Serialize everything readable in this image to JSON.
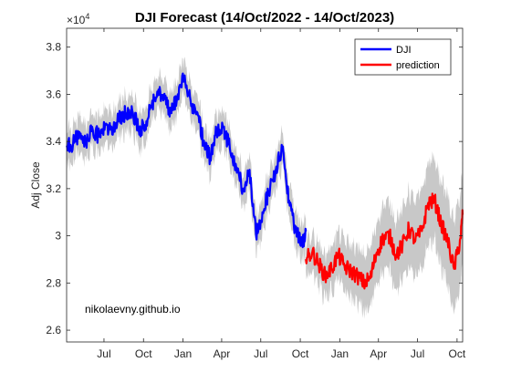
{
  "chart_data": {
    "type": "line",
    "title": "DJI Forecast (14/Oct/2022 - 14/Oct/2023)",
    "xlabel": "",
    "ylabel": "Adj Close",
    "y_exponent_label": "×10",
    "y_exponent_power": "4",
    "ylim": [
      25500,
      38800
    ],
    "y_ticks": [
      26000,
      28000,
      30000,
      32000,
      34000,
      36000,
      38000
    ],
    "y_tick_labels": [
      "2.6",
      "2.8",
      "3",
      "3.2",
      "3.4",
      "3.6",
      "3.8"
    ],
    "x_tick_labels": [
      "Jul",
      "Oct",
      "Jan",
      "Apr",
      "Jul",
      "Oct",
      "Jan",
      "Apr",
      "Jul",
      "Oct"
    ],
    "x_tick_dates": [
      "2021-07-01",
      "2021-10-01",
      "2022-01-01",
      "2022-04-01",
      "2022-07-01",
      "2022-10-01",
      "2023-01-01",
      "2023-04-01",
      "2023-07-01",
      "2023-10-01"
    ],
    "x_range": [
      "2021-04-05",
      "2023-10-14"
    ],
    "grid": false,
    "legend_position": "top-right",
    "annotation": "nikolaevny.github.io",
    "colors": {
      "history": "#0000ff",
      "prediction": "#ff0000",
      "band": "#c8c8c8"
    },
    "series": [
      {
        "name": "DJI",
        "dates": [
          "2021-04-05",
          "2021-04-20",
          "2021-05-05",
          "2021-05-20",
          "2021-06-05",
          "2021-06-20",
          "2021-07-05",
          "2021-07-20",
          "2021-08-05",
          "2021-08-20",
          "2021-09-05",
          "2021-09-20",
          "2021-10-05",
          "2021-10-20",
          "2021-11-05",
          "2021-11-20",
          "2021-12-05",
          "2021-12-20",
          "2022-01-05",
          "2022-01-20",
          "2022-02-05",
          "2022-02-20",
          "2022-03-05",
          "2022-03-20",
          "2022-04-05",
          "2022-04-20",
          "2022-05-05",
          "2022-05-20",
          "2022-06-05",
          "2022-06-20",
          "2022-07-05",
          "2022-07-20",
          "2022-08-05",
          "2022-08-20",
          "2022-09-05",
          "2022-09-20",
          "2022-10-05",
          "2022-10-14"
        ],
        "values": [
          33800,
          33900,
          34400,
          34000,
          34500,
          34200,
          34700,
          34300,
          35000,
          35200,
          35300,
          34500,
          34700,
          35500,
          36200,
          35800,
          35200,
          36000,
          36800,
          35500,
          35100,
          33800,
          33300,
          34500,
          34600,
          33700,
          32900,
          32000,
          32800,
          30000,
          31000,
          31800,
          32800,
          33700,
          31500,
          30200,
          29600,
          30200
        ]
      },
      {
        "name": "prediction",
        "dates": [
          "2022-10-14",
          "2022-10-29",
          "2022-11-13",
          "2022-11-28",
          "2022-12-13",
          "2022-12-28",
          "2023-01-12",
          "2023-01-27",
          "2023-02-11",
          "2023-02-26",
          "2023-03-13",
          "2023-03-28",
          "2023-04-12",
          "2023-04-27",
          "2023-05-12",
          "2023-05-27",
          "2023-06-11",
          "2023-06-26",
          "2023-07-11",
          "2023-07-26",
          "2023-08-10",
          "2023-08-25",
          "2023-09-09",
          "2023-09-24",
          "2023-10-09",
          "2023-10-14"
        ],
        "values": [
          29000,
          29300,
          28800,
          28300,
          28600,
          29200,
          28700,
          28500,
          28300,
          28000,
          28200,
          29300,
          29900,
          30000,
          29200,
          29600,
          30300,
          29800,
          30200,
          31400,
          31500,
          30500,
          29800,
          28600,
          29900,
          30900
        ]
      }
    ]
  }
}
